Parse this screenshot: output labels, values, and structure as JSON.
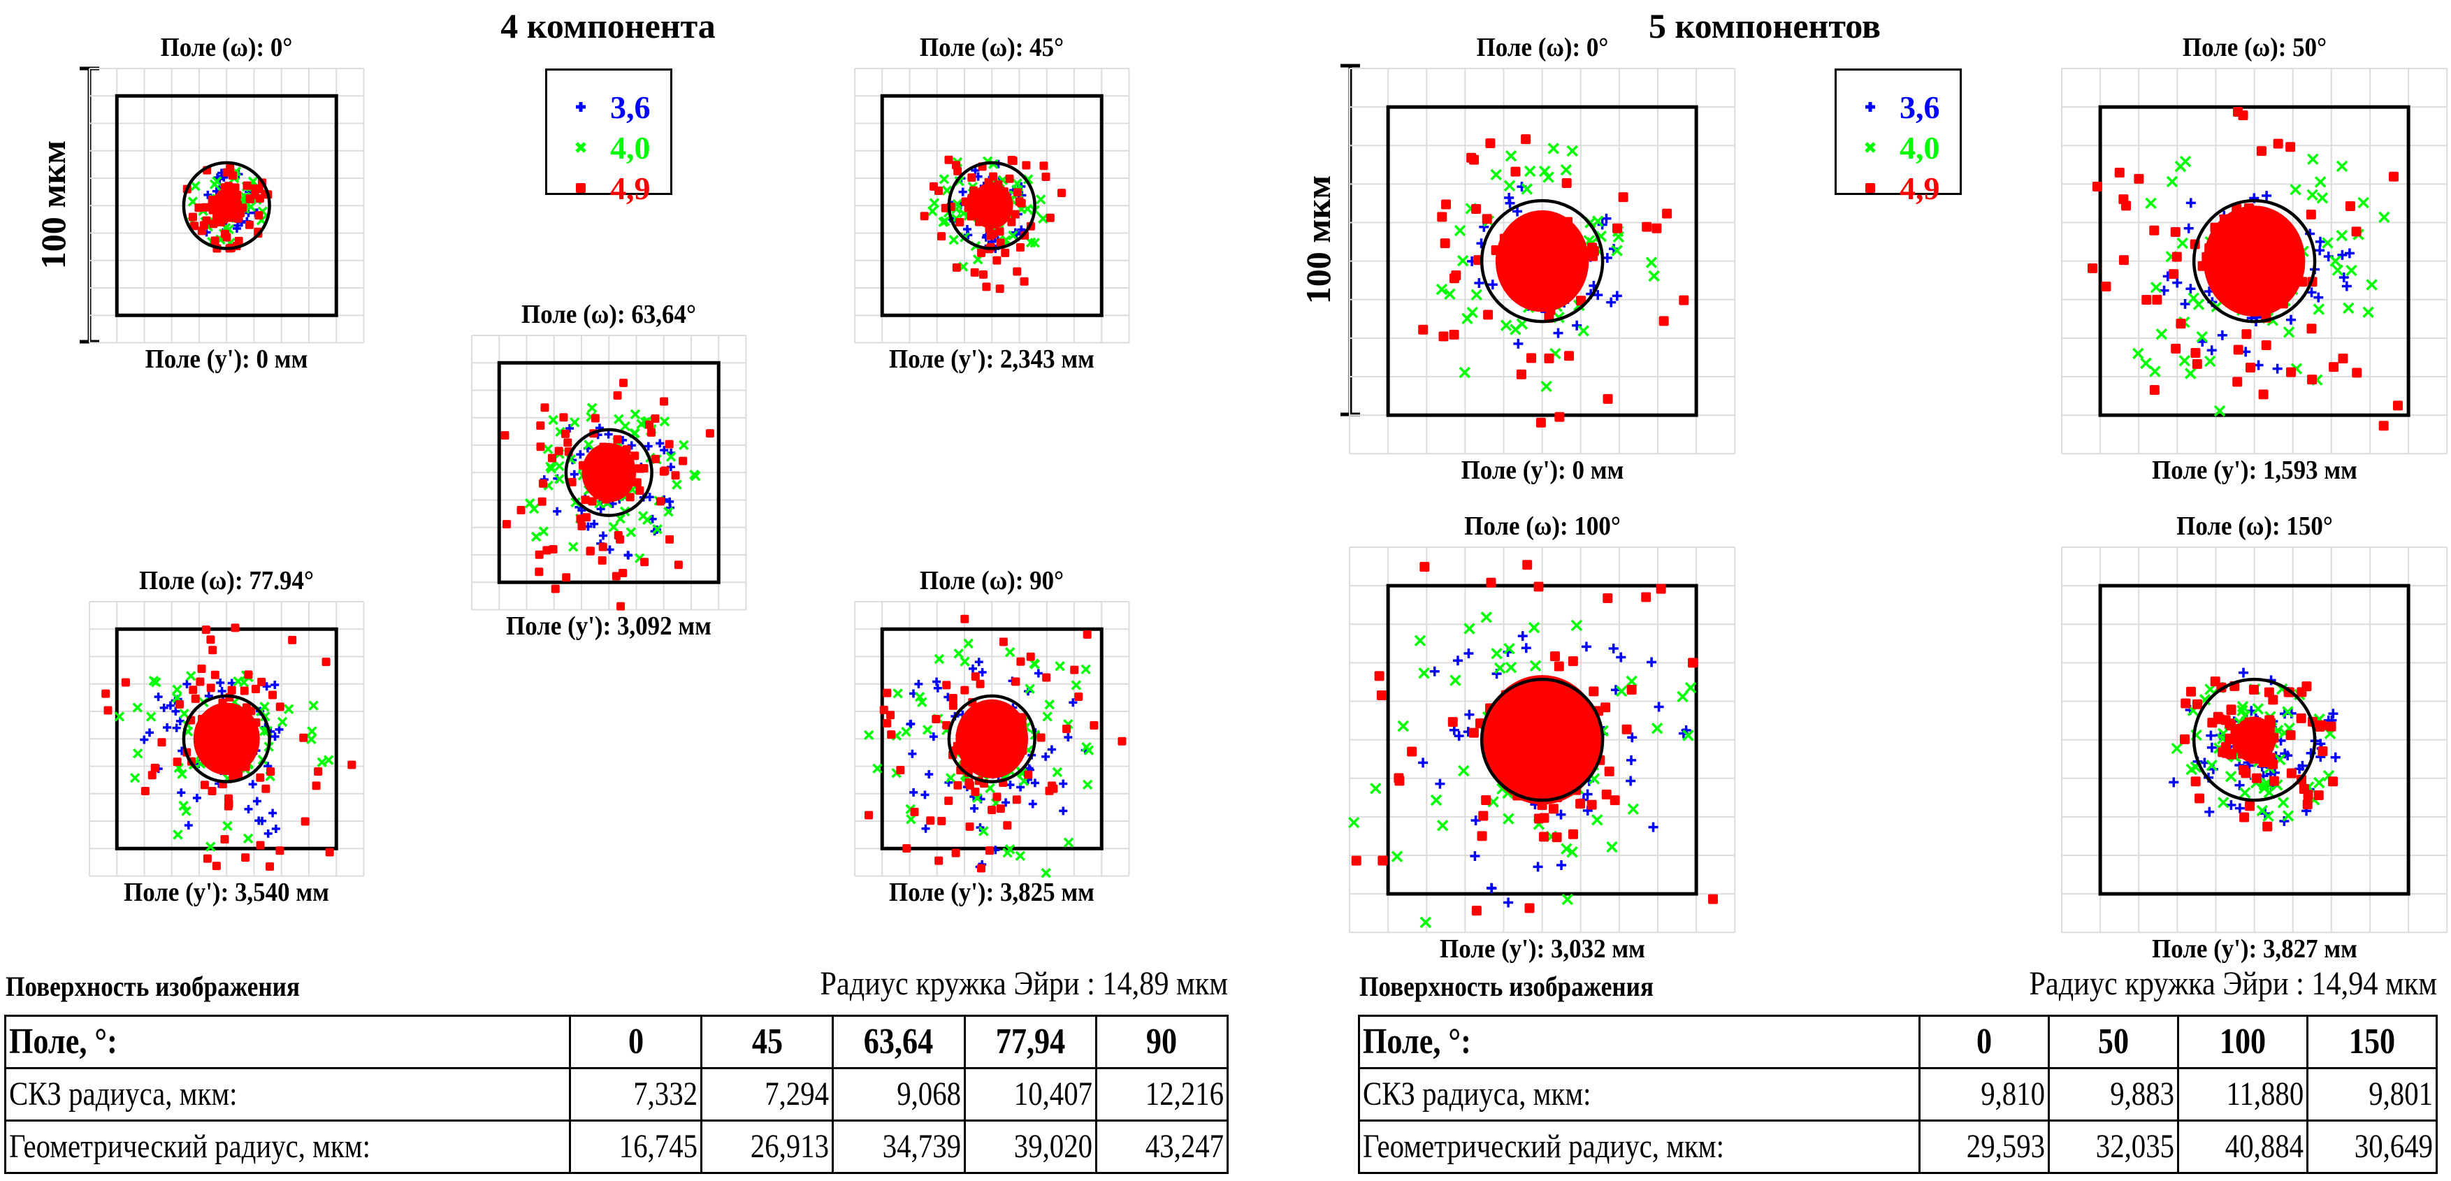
{
  "chart_data": [
    {
      "type": "scatter",
      "title": "4 компонента",
      "scale_bar_label": "100 мкм",
      "scale_bar_um": 100,
      "legend": [
        {
          "label": "3,6",
          "color": "#0000ff",
          "marker": "plus"
        },
        {
          "label": "4,0",
          "color": "#00ff00",
          "marker": "cross"
        },
        {
          "label": "4,9",
          "color": "#ff0000",
          "marker": "square"
        }
      ],
      "box_um": 80,
      "airy_radius_um": 14.89,
      "plots": [
        {
          "field_label": "Поле (ω): 0°",
          "image_label": "Поле (y'): 0 мм",
          "center_offset_um": 0,
          "spread": [
            8,
            9,
            10
          ],
          "tail": 0.15,
          "asym": 0.0
        },
        {
          "field_label": "Поле (ω): 45°",
          "image_label": "Поле (y'): 2,343 мм",
          "center_offset_um": 0,
          "spread": [
            9,
            11,
            14
          ],
          "tail": 0.6,
          "asym": 0.35
        },
        {
          "field_label": "Поле (ω): 63,64°",
          "image_label": "Поле (y'): 3,092 мм",
          "center_offset_um": 0,
          "spread": [
            11,
            14,
            18
          ],
          "tail": 0.9,
          "asym": 0.45
        },
        {
          "field_label": "Поле (ω): 77.94°",
          "image_label": "Поле (y'): 3,540 мм",
          "center_offset_um": 0,
          "spread": [
            13,
            17,
            22
          ],
          "tail": 1.0,
          "asym": 0.5
        },
        {
          "field_label": "Поле (ω): 90°",
          "image_label": "Поле (y'): 3,825 мм",
          "center_offset_um": 0,
          "spread": [
            15,
            19,
            24
          ],
          "tail": 1.1,
          "asym": 0.6
        }
      ],
      "table": {
        "surface_label": "Поверхность изображения",
        "airy_text": "Радиус кружка Эйри : 14,89 мкм",
        "header_label": "Поле, °:",
        "fields": [
          "0",
          "45",
          "63,64",
          "77,94",
          "90"
        ],
        "rows": [
          {
            "label": "СКЗ радиуса, мкм:",
            "values": [
              "7,332",
              "7,294",
              "9,068",
              "10,407",
              "12,216"
            ]
          },
          {
            "label": "Геометрический радиус, мкм:",
            "values": [
              "16,745",
              "26,913",
              "34,739",
              "39,020",
              "43,247"
            ]
          }
        ]
      }
    },
    {
      "type": "scatter",
      "title": "5 компонентов",
      "scale_bar_label": "100 мкм",
      "scale_bar_um": 100,
      "legend": [
        {
          "label": "3,6",
          "color": "#0000ff",
          "marker": "plus"
        },
        {
          "label": "4,0",
          "color": "#00ff00",
          "marker": "cross"
        },
        {
          "label": "4,9",
          "color": "#ff0000",
          "marker": "square"
        }
      ],
      "box_um": 80,
      "airy_radius_um": 14.94,
      "plots": [
        {
          "field_label": "Поле (ω): 0°",
          "image_label": "Поле (y'): 0 мм",
          "center_offset_um": 0,
          "spread": [
            12,
            18,
            22
          ],
          "tail": 0.4,
          "asym": 0.1
        },
        {
          "field_label": "Поле (ω): 50°",
          "image_label": "Поле (y'): 1,593 мм",
          "center_offset_um": 0,
          "spread": [
            12,
            18,
            24
          ],
          "tail": 0.7,
          "asym": 0.3
        },
        {
          "field_label": "Поле (ω): 100°",
          "image_label": "Поле (y'): 3,032 мм",
          "center_offset_um": 0,
          "spread": [
            16,
            22,
            28
          ],
          "tail": 0.9,
          "asym": 0.5
        },
        {
          "field_label": "Поле (ω): 150°",
          "image_label": "Поле (y'): 3,827 мм",
          "center_offset_um": 0,
          "spread": [
            10,
            9,
            10
          ],
          "tail": 0.7,
          "asym": 0.6
        }
      ],
      "table": {
        "surface_label": "Поверхность изображения",
        "airy_text": "Радиус кружка Эйри : 14,94 мкм",
        "header_label": "Поле, °:",
        "fields": [
          "0",
          "50",
          "100",
          "150"
        ],
        "rows": [
          {
            "label": "СКЗ радиуса, мкм:",
            "values": [
              "9,810",
              "9,883",
              "11,880",
              "9,801"
            ]
          },
          {
            "label": "Геометрический радиус, мкм:",
            "values": [
              "29,593",
              "32,035",
              "40,884",
              "30,649"
            ]
          }
        ]
      }
    }
  ]
}
